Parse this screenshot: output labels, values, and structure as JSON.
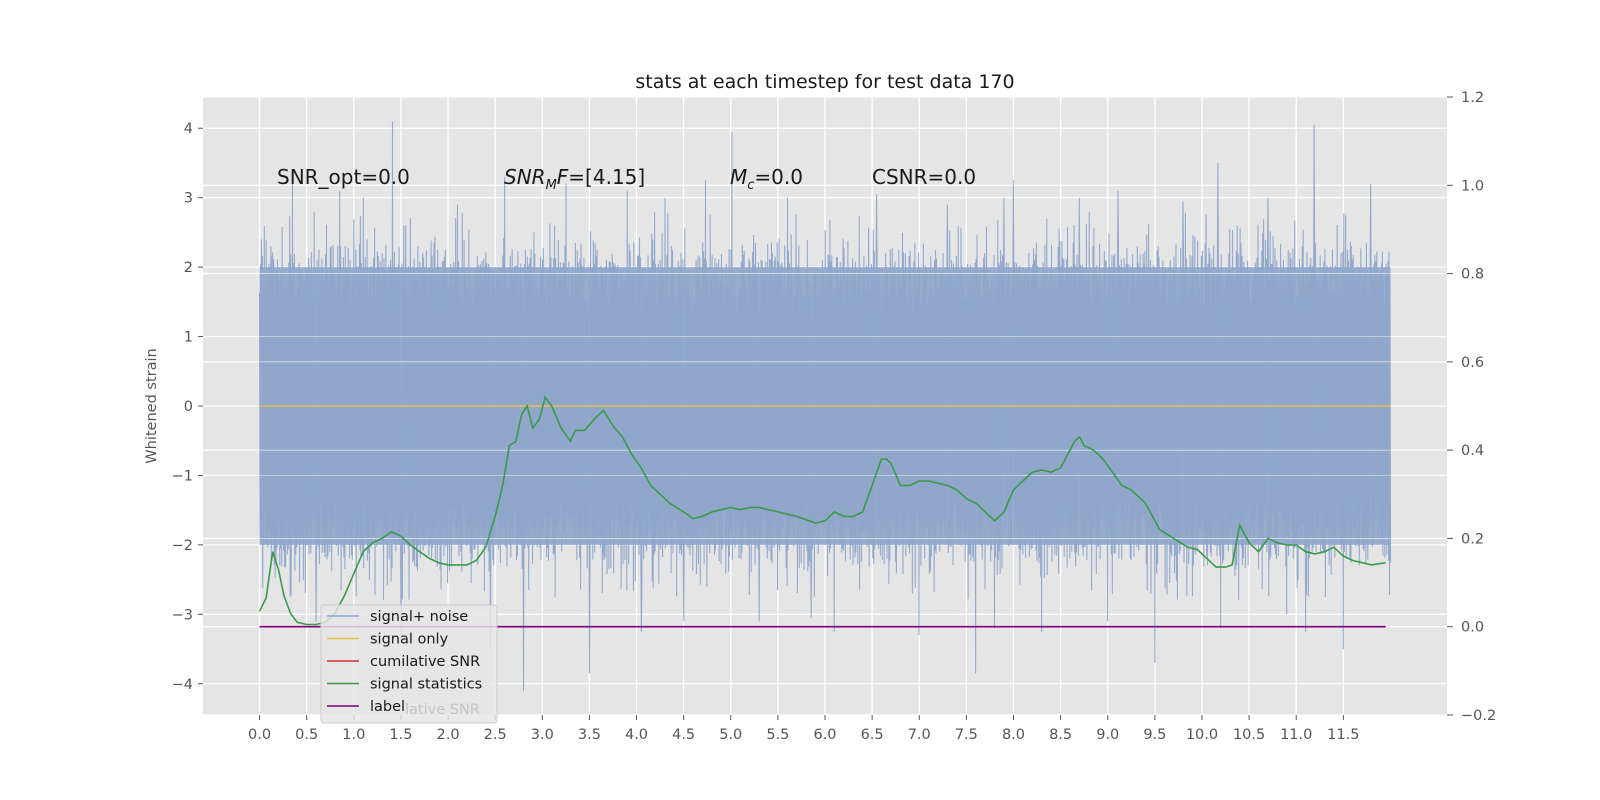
{
  "chart_data": {
    "type": "line",
    "title": "stats at each timestep for test data 170",
    "ylabel": "Whitened strain",
    "xlim": [
      -0.6,
      12.6
    ],
    "ylim": [
      -4.45,
      4.45
    ],
    "y2lim": [
      -0.2,
      1.2
    ],
    "grid": true,
    "legend_placement": "lower-left",
    "x_ticks": [
      "0.0",
      "0.5",
      "1.0",
      "1.5",
      "2.0",
      "2.5",
      "3.0",
      "3.5",
      "4.0",
      "4.5",
      "5.0",
      "5.5",
      "6.0",
      "6.5",
      "7.0",
      "7.5",
      "8.0",
      "8.5",
      "9.0",
      "9.5",
      "10.0",
      "10.5",
      "11.0",
      "11.5"
    ],
    "y_ticks": [
      "4",
      "3",
      "2",
      "1",
      "0",
      "−1",
      "−2",
      "−3",
      "−4"
    ],
    "y2_ticks": [
      "1.2",
      "1.0",
      "0.8",
      "0.6",
      "0.4",
      "0.2",
      "0.0",
      "−0.2"
    ],
    "annotations": {
      "snr_opt": "SNR_opt=0.0",
      "snr_mf_base": "SNR",
      "snr_mf_sub": "M",
      "snr_mf_rest": "F=[4.15]",
      "mc_base": "M",
      "mc_sub": "c",
      "mc_rest": "=0.0",
      "csnr": "CSNR=0.0"
    },
    "series": [
      {
        "name": "signal+ noise",
        "color": "#8fa6cb",
        "x_range": [
          0.0,
          12.0
        ],
        "band": [
          -2.0,
          2.0
        ],
        "peaks_up": [
          [
            1.41,
            4.1
          ],
          [
            11.19,
            4.05
          ],
          [
            5.01,
            3.95
          ],
          [
            10.17,
            3.5
          ],
          [
            4.73,
            3.25
          ],
          [
            8.0,
            3.25
          ],
          [
            0.35,
            3.3
          ],
          [
            9.11,
            3.1
          ],
          [
            11.79,
            3.2
          ],
          [
            2.6,
            3.3
          ],
          [
            3.9,
            3.1
          ],
          [
            6.55,
            3.05
          ],
          [
            1.1,
            3.0
          ],
          [
            7.3,
            2.9
          ],
          [
            10.7,
            3.0
          ],
          [
            0.85,
            3.1
          ],
          [
            3.25,
            3.2
          ],
          [
            5.6,
            3.0
          ],
          [
            8.7,
            3.0
          ],
          [
            2.1,
            2.9
          ],
          [
            4.3,
            3.0
          ],
          [
            9.8,
            2.95
          ],
          [
            11.5,
            3.05
          ],
          [
            7.9,
            3.0
          ]
        ],
        "peaks_down": [
          [
            2.8,
            -4.1
          ],
          [
            3.5,
            -3.85
          ],
          [
            7.6,
            -3.85
          ],
          [
            9.5,
            -3.7
          ],
          [
            11.5,
            -3.5
          ],
          [
            1.5,
            -3.35
          ],
          [
            6.1,
            -3.25
          ],
          [
            7.0,
            -3.3
          ],
          [
            8.3,
            -3.25
          ],
          [
            2.45,
            -3.5
          ],
          [
            4.5,
            -3.1
          ],
          [
            5.3,
            -3.1
          ],
          [
            10.2,
            -3.2
          ],
          [
            11.1,
            -3.25
          ],
          [
            0.6,
            -3.1
          ],
          [
            9.0,
            -3.1
          ],
          [
            4.05,
            -3.25
          ],
          [
            5.85,
            -3.05
          ],
          [
            7.8,
            -3.2
          ],
          [
            10.9,
            -3.0
          ]
        ]
      },
      {
        "name": "signal only",
        "color": "#e8c04a",
        "x": [
          0.0,
          12.0
        ],
        "y": [
          0.0,
          0.0
        ]
      },
      {
        "name": "cumilative SNR",
        "color": "#d03030",
        "x": [],
        "y": []
      },
      {
        "name": "signal statistics",
        "color": "#3a9a4a",
        "axis": "right",
        "x": [
          0.0,
          0.07,
          0.14,
          0.2,
          0.26,
          0.33,
          0.4,
          0.5,
          0.6,
          0.7,
          0.8,
          0.9,
          1.0,
          1.1,
          1.2,
          1.3,
          1.4,
          1.5,
          1.6,
          1.7,
          1.8,
          1.9,
          2.0,
          2.1,
          2.2,
          2.3,
          2.4,
          2.5,
          2.58,
          2.65,
          2.72,
          2.78,
          2.84,
          2.9,
          2.97,
          3.03,
          3.1,
          3.2,
          3.3,
          3.35,
          3.45,
          3.55,
          3.65,
          3.75,
          3.85,
          3.95,
          4.05,
          4.15,
          4.25,
          4.35,
          4.5,
          4.6,
          4.7,
          4.8,
          4.9,
          5.0,
          5.1,
          5.2,
          5.3,
          5.5,
          5.7,
          5.9,
          6.0,
          6.1,
          6.2,
          6.3,
          6.4,
          6.5,
          6.55,
          6.6,
          6.65,
          6.7,
          6.8,
          6.9,
          7.0,
          7.1,
          7.2,
          7.3,
          7.4,
          7.5,
          7.6,
          7.7,
          7.8,
          7.85,
          7.9,
          8.0,
          8.1,
          8.2,
          8.3,
          8.4,
          8.5,
          8.6,
          8.65,
          8.7,
          8.75,
          8.85,
          8.95,
          9.05,
          9.15,
          9.25,
          9.4,
          9.55,
          9.7,
          9.85,
          9.95,
          10.05,
          10.15,
          10.25,
          10.32,
          10.4,
          10.5,
          10.6,
          10.7,
          10.8,
          10.9,
          11.0,
          11.1,
          11.2,
          11.3,
          11.4,
          11.5,
          11.6,
          11.7,
          11.8,
          11.95
        ],
        "y": [
          0.035,
          0.065,
          0.17,
          0.13,
          0.07,
          0.03,
          0.01,
          0.005,
          0.005,
          0.01,
          0.03,
          0.07,
          0.12,
          0.17,
          0.19,
          0.2,
          0.215,
          0.205,
          0.185,
          0.17,
          0.155,
          0.145,
          0.14,
          0.14,
          0.14,
          0.15,
          0.18,
          0.25,
          0.32,
          0.41,
          0.42,
          0.48,
          0.5,
          0.45,
          0.47,
          0.52,
          0.5,
          0.45,
          0.42,
          0.445,
          0.445,
          0.47,
          0.49,
          0.455,
          0.43,
          0.39,
          0.36,
          0.32,
          0.3,
          0.28,
          0.26,
          0.245,
          0.25,
          0.26,
          0.265,
          0.27,
          0.265,
          0.27,
          0.27,
          0.26,
          0.25,
          0.235,
          0.24,
          0.26,
          0.25,
          0.25,
          0.26,
          0.32,
          0.35,
          0.38,
          0.38,
          0.37,
          0.32,
          0.32,
          0.33,
          0.33,
          0.325,
          0.32,
          0.31,
          0.29,
          0.28,
          0.26,
          0.24,
          0.25,
          0.26,
          0.31,
          0.33,
          0.35,
          0.355,
          0.35,
          0.36,
          0.4,
          0.42,
          0.43,
          0.41,
          0.4,
          0.38,
          0.35,
          0.32,
          0.31,
          0.28,
          0.22,
          0.2,
          0.18,
          0.175,
          0.155,
          0.135,
          0.135,
          0.14,
          0.23,
          0.19,
          0.17,
          0.2,
          0.19,
          0.185,
          0.185,
          0.17,
          0.165,
          0.17,
          0.18,
          0.16,
          0.15,
          0.145,
          0.14,
          0.145
        ]
      },
      {
        "name": "label",
        "color": "#800080",
        "axis": "right",
        "x": [
          0.0,
          11.95
        ],
        "y": [
          0.0,
          0.0
        ]
      }
    ],
    "legend_entries": [
      {
        "label": "signal+ noise",
        "color": "#8fa6cb"
      },
      {
        "label": "signal only",
        "color": "#e8c04a"
      },
      {
        "label": "cumilative SNR",
        "color": "#d03030"
      },
      {
        "label": "signal statistics",
        "color": "#3a9a4a"
      },
      {
        "label": "label",
        "color": "#800080"
      }
    ],
    "hidden_legend_text": "lative SNR"
  }
}
